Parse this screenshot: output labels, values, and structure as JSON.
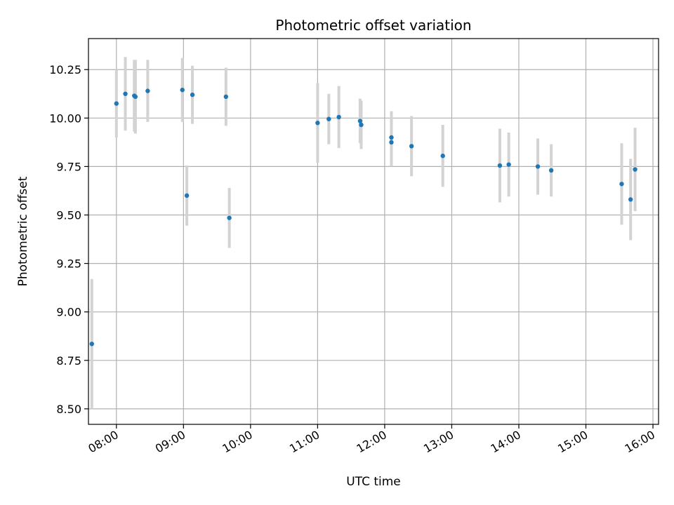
{
  "chart_data": {
    "type": "scatter",
    "title": "Photometric offset variation",
    "xlabel": "UTC time",
    "ylabel": "Photometric offset",
    "xlim": [
      "07:35",
      "16:05"
    ],
    "ylim": [
      8.42,
      10.41
    ],
    "grid": true,
    "x_ticks": [
      "08:00",
      "09:00",
      "10:00",
      "11:00",
      "12:00",
      "13:00",
      "14:00",
      "15:00",
      "16:00"
    ],
    "y_ticks": [
      "8.50",
      "8.75",
      "9.00",
      "9.25",
      "9.50",
      "9.75",
      "10.00",
      "10.25"
    ],
    "marker_color": "#1f77b4",
    "errorbar_color": "#d3d3d3",
    "series": [
      {
        "points": [
          {
            "x": "07:38",
            "y": 8.835,
            "yerr": 0.335
          },
          {
            "x": "08:00",
            "y": 10.075,
            "yerr": 0.175
          },
          {
            "x": "08:08",
            "y": 10.125,
            "yerr": 0.19
          },
          {
            "x": "08:16",
            "y": 10.115,
            "yerr": 0.185
          },
          {
            "x": "08:17",
            "y": 10.11,
            "yerr": 0.19
          },
          {
            "x": "08:28",
            "y": 10.14,
            "yerr": 0.16
          },
          {
            "x": "08:59",
            "y": 10.145,
            "yerr": 0.165
          },
          {
            "x": "09:03",
            "y": 9.6,
            "yerr": 0.155
          },
          {
            "x": "09:08",
            "y": 10.12,
            "yerr": 0.15
          },
          {
            "x": "09:38",
            "y": 10.11,
            "yerr": 0.15
          },
          {
            "x": "09:41",
            "y": 9.485,
            "yerr": 0.155
          },
          {
            "x": "11:00",
            "y": 9.975,
            "yerr": 0.205
          },
          {
            "x": "11:10",
            "y": 9.995,
            "yerr": 0.13
          },
          {
            "x": "11:19",
            "y": 10.005,
            "yerr": 0.16
          },
          {
            "x": "11:38",
            "y": 9.985,
            "yerr": 0.115
          },
          {
            "x": "11:39",
            "y": 9.965,
            "yerr": 0.125
          },
          {
            "x": "12:06",
            "y": 9.9,
            "yerr": 0.135
          },
          {
            "x": "12:06",
            "y": 9.875,
            "yerr": 0.125
          },
          {
            "x": "12:24",
            "y": 9.855,
            "yerr": 0.155
          },
          {
            "x": "12:52",
            "y": 9.805,
            "yerr": 0.16
          },
          {
            "x": "13:43",
            "y": 9.755,
            "yerr": 0.19
          },
          {
            "x": "13:51",
            "y": 9.76,
            "yerr": 0.165
          },
          {
            "x": "14:17",
            "y": 9.75,
            "yerr": 0.145
          },
          {
            "x": "14:29",
            "y": 9.73,
            "yerr": 0.135
          },
          {
            "x": "15:32",
            "y": 9.66,
            "yerr": 0.21
          },
          {
            "x": "15:40",
            "y": 9.58,
            "yerr": 0.21
          },
          {
            "x": "15:44",
            "y": 9.735,
            "yerr": 0.215
          }
        ]
      }
    ]
  }
}
